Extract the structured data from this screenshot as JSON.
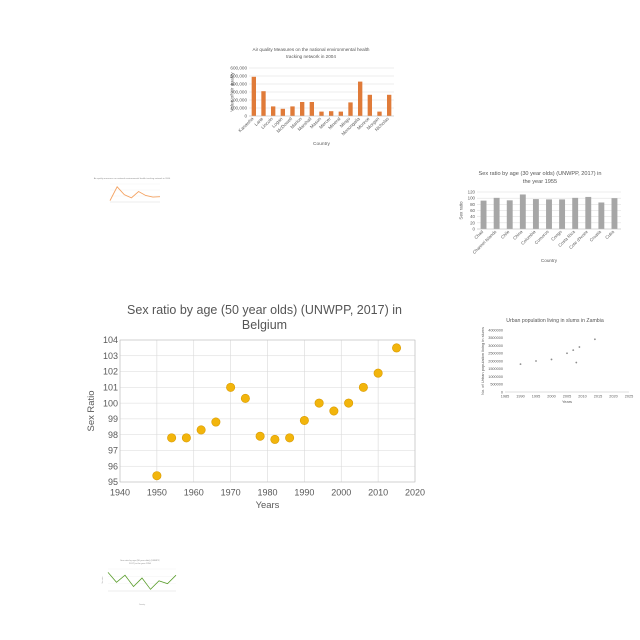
{
  "chart_data": [
    {
      "type": "bar",
      "title": "Air quality Measures on the national environmental health tracking network in 2004",
      "title_lines": [
        "Air quality Measures on the national environmental health",
        "tracking network in 2004"
      ],
      "xlabel": "Country",
      "ylabel": "Value of air quality",
      "ylim": [
        0,
        600000
      ],
      "yticks": [
        "0",
        "100,000",
        "200,000",
        "300,000",
        "400,000",
        "500,000",
        "600,000"
      ],
      "categories": [
        "Kanawha",
        "Lane",
        "Lincoln",
        "Logan",
        "McDowell",
        "Marion",
        "Marshall",
        "Mason",
        "Mercer",
        "Mineral",
        "Mingo",
        "Monongalia",
        "Monroe",
        "Morgan",
        "Nicholas"
      ],
      "values": [
        490000,
        310000,
        120000,
        90000,
        120000,
        175000,
        175000,
        55000,
        60000,
        55000,
        170000,
        430000,
        265000,
        55000,
        265000
      ],
      "color": "#e07b39",
      "grid": true
    },
    {
      "type": "line",
      "title": "Air quality measures on national environmental health tracking network in 2004",
      "xlabel": "",
      "ylabel": "",
      "values": [
        5,
        40,
        20,
        12,
        28,
        18,
        14,
        15
      ],
      "color": "#f4a261",
      "tiny": true
    },
    {
      "type": "bar",
      "title": "Sex ratio by age (30 year olds) (UNWPP, 2017) in the year 1955",
      "title_lines": [
        "Sex ratio by age (30 year olds) (UNWPP, 2017) in",
        "the year 1955"
      ],
      "xlabel": "Country",
      "ylabel": "Sex ratio",
      "ylim": [
        0,
        120
      ],
      "yticks": [
        "0",
        "20",
        "40",
        "60",
        "80",
        "100",
        "120"
      ],
      "categories": [
        "Chad",
        "Channel Islands",
        "Chile",
        "China",
        "Colombia",
        "Comoros",
        "Congo",
        "Costa Rica",
        "Cote d'Ivoire",
        "Croatia",
        "Cuba"
      ],
      "values": [
        92,
        101,
        93,
        112,
        97,
        96,
        96,
        101,
        104,
        86,
        100
      ],
      "color": "#a6a6a6",
      "grid": true
    },
    {
      "type": "scatter",
      "title": "Sex ratio by age (50 year olds) (UNWPP, 2017) in Belgium",
      "title_lines": [
        "Sex ratio by age (50 year olds) (UNWPP, 2017) in",
        "Belgium"
      ],
      "xlabel": "Years",
      "ylabel": "Sex Ratio",
      "xlim": [
        1940,
        2020
      ],
      "ylim": [
        95,
        104
      ],
      "xticks": [
        "1940",
        "1950",
        "1960",
        "1970",
        "1980",
        "1990",
        "2000",
        "2010",
        "2020"
      ],
      "yticks": [
        "95",
        "96",
        "97",
        "98",
        "99",
        "100",
        "101",
        "102",
        "103",
        "104"
      ],
      "x": [
        1950,
        1954,
        1958,
        1962,
        1966,
        1970,
        1974,
        1978,
        1982,
        1986,
        1990,
        1994,
        1998,
        2002,
        2006,
        2010,
        2015
      ],
      "y": [
        95.4,
        97.8,
        97.8,
        98.3,
        98.8,
        101.0,
        100.3,
        97.9,
        97.7,
        97.8,
        98.9,
        100.0,
        99.5,
        100.0,
        101.0,
        101.9,
        103.5
      ],
      "color": "#f2b50c",
      "grid": true
    },
    {
      "type": "scatter",
      "title": "Urban population living in slums in Zambia",
      "xlabel": "Years",
      "ylabel": "No. of Urban population living in slums",
      "xlim": [
        1985,
        2025
      ],
      "ylim": [
        0,
        4000000
      ],
      "xticks": [
        "1985",
        "1990",
        "1995",
        "2000",
        "2005",
        "2010",
        "2015",
        "2020",
        "2025"
      ],
      "yticks": [
        "0",
        "500000",
        "1000000",
        "1500000",
        "2000000",
        "2500000",
        "3000000",
        "3500000",
        "4000000"
      ],
      "x": [
        1990,
        1995,
        2000,
        2005,
        2007,
        2008,
        2009,
        2014
      ],
      "y": [
        1800000,
        2000000,
        2100000,
        2500000,
        2700000,
        1900000,
        2900000,
        3400000
      ],
      "color": "#a6a6a6",
      "grid": false
    },
    {
      "type": "line",
      "title": "Sex ratio by age (80 year olds) (UNWPP, 2017) in the year 1950",
      "title_lines": [
        "Sex ratio by age (80 year olds) (UNWPP,",
        "2017) in the year 1950"
      ],
      "xlabel": "Country",
      "ylabel": "Sex ratio",
      "values": [
        62,
        55,
        60,
        52,
        58,
        50,
        56,
        54,
        60
      ],
      "color": "#5b9e2d",
      "tiny": true
    }
  ]
}
